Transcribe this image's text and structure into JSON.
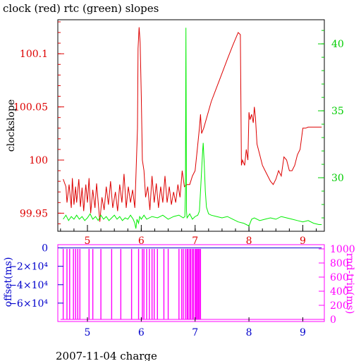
{
  "title": "clock (red) rtc (green) slopes",
  "footer": "2007-11-04 charge",
  "chart_data": [
    {
      "type": "line",
      "title": "clock (red) rtc (green) slopes",
      "ylabel": "clockslope",
      "y2label": "",
      "xlim": [
        4.45,
        9.4
      ],
      "ylim": [
        99.933,
        100.132
      ],
      "y2lim": [
        26.0,
        41.8
      ],
      "x_ticks": [
        5,
        6,
        7,
        8,
        9
      ],
      "y_ticks": [
        99.95,
        100,
        100.05,
        100.1
      ],
      "y_tick_labels": [
        "99.95",
        "100",
        "100.05",
        "100.1"
      ],
      "y2_ticks": [
        30,
        35,
        40
      ],
      "y2_tick_labels": [
        "30",
        "35",
        "40"
      ],
      "colors": {
        "clock": "#dd0000",
        "rtc": "#00ee00",
        "axis_left": "#dd0000",
        "axis_right": "#00cc00",
        "x_tick_labels": "#dd0000"
      },
      "series": [
        {
          "axis": "left",
          "color": "#dd0000",
          "points": [
            [
              4.55,
              99.982
            ],
            [
              4.6,
              99.975
            ],
            [
              4.62,
              99.96
            ],
            [
              4.66,
              99.977
            ],
            [
              4.7,
              99.955
            ],
            [
              4.72,
              99.983
            ],
            [
              4.75,
              99.958
            ],
            [
              4.78,
              99.975
            ],
            [
              4.8,
              99.96
            ],
            [
              4.84,
              99.982
            ],
            [
              4.87,
              99.956
            ],
            [
              4.9,
              99.974
            ],
            [
              4.93,
              99.952
            ],
            [
              4.97,
              99.977
            ],
            [
              5.0,
              99.96
            ],
            [
              5.03,
              99.983
            ],
            [
              5.06,
              99.95
            ],
            [
              5.1,
              99.972
            ],
            [
              5.14,
              99.955
            ],
            [
              5.17,
              99.978
            ],
            [
              5.2,
              99.96
            ],
            [
              5.23,
              99.942
            ],
            [
              5.27,
              99.965
            ],
            [
              5.31,
              99.953
            ],
            [
              5.35,
              99.975
            ],
            [
              5.39,
              99.958
            ],
            [
              5.43,
              99.98
            ],
            [
              5.47,
              99.955
            ],
            [
              5.52,
              99.97
            ],
            [
              5.56,
              99.952
            ],
            [
              5.6,
              99.977
            ],
            [
              5.64,
              99.96
            ],
            [
              5.68,
              99.987
            ],
            [
              5.72,
              99.955
            ],
            [
              5.76,
              99.975
            ],
            [
              5.8,
              99.96
            ],
            [
              5.84,
              99.972
            ],
            [
              5.88,
              99.955
            ],
            [
              5.9,
              99.983
            ],
            [
              5.93,
              100.03
            ],
            [
              5.94,
              100.105
            ],
            [
              5.96,
              100.125
            ],
            [
              5.98,
              100.11
            ],
            [
              6.0,
              100.06
            ],
            [
              6.02,
              100.0
            ],
            [
              6.05,
              99.99
            ],
            [
              6.08,
              99.965
            ],
            [
              6.12,
              99.975
            ],
            [
              6.16,
              99.953
            ],
            [
              6.2,
              99.985
            ],
            [
              6.24,
              99.96
            ],
            [
              6.28,
              99.978
            ],
            [
              6.32,
              99.955
            ],
            [
              6.36,
              99.975
            ],
            [
              6.4,
              99.96
            ],
            [
              6.44,
              99.985
            ],
            [
              6.48,
              99.96
            ],
            [
              6.52,
              99.975
            ],
            [
              6.56,
              99.958
            ],
            [
              6.6,
              99.97
            ],
            [
              6.64,
              99.96
            ],
            [
              6.68,
              99.977
            ],
            [
              6.72,
              99.965
            ],
            [
              6.76,
              99.99
            ],
            [
              6.8,
              99.975
            ],
            [
              6.85,
              99.977
            ],
            [
              6.9,
              99.977
            ],
            [
              6.95,
              99.985
            ],
            [
              7.0,
              99.99
            ],
            [
              7.04,
              100.01
            ],
            [
              7.08,
              100.03
            ],
            [
              7.1,
              100.043
            ],
            [
              7.12,
              100.025
            ],
            [
              7.16,
              100.03
            ],
            [
              7.3,
              100.055
            ],
            [
              7.45,
              100.075
            ],
            [
              7.6,
              100.095
            ],
            [
              7.7,
              100.108
            ],
            [
              7.8,
              100.12
            ],
            [
              7.84,
              100.118
            ],
            [
              7.86,
              99.995
            ],
            [
              7.88,
              100.0
            ],
            [
              7.92,
              99.995
            ],
            [
              7.95,
              100.01
            ],
            [
              7.98,
              100.0
            ],
            [
              8.0,
              100.045
            ],
            [
              8.02,
              100.038
            ],
            [
              8.05,
              100.043
            ],
            [
              8.08,
              100.035
            ],
            [
              8.1,
              100.05
            ],
            [
              8.12,
              100.04
            ],
            [
              8.15,
              100.015
            ],
            [
              8.2,
              100.005
            ],
            [
              8.25,
              99.995
            ],
            [
              8.3,
              99.99
            ],
            [
              8.35,
              99.985
            ],
            [
              8.4,
              99.98
            ],
            [
              8.45,
              99.977
            ],
            [
              8.5,
              99.982
            ],
            [
              8.55,
              99.99
            ],
            [
              8.6,
              99.985
            ],
            [
              8.65,
              100.003
            ],
            [
              8.7,
              100.0
            ],
            [
              8.75,
              99.99
            ],
            [
              8.8,
              99.99
            ],
            [
              8.85,
              99.995
            ],
            [
              8.9,
              100.005
            ],
            [
              8.95,
              100.01
            ],
            [
              9.0,
              100.03
            ],
            [
              9.05,
              100.03
            ],
            [
              9.1,
              100.031
            ],
            [
              9.2,
              100.031
            ],
            [
              9.35,
              100.031
            ]
          ]
        },
        {
          "axis": "right",
          "color": "#00ee00",
          "points": [
            [
              4.55,
              26.9
            ],
            [
              4.6,
              27.2
            ],
            [
              4.65,
              26.8
            ],
            [
              4.7,
              27.1
            ],
            [
              4.75,
              26.9
            ],
            [
              4.8,
              27.2
            ],
            [
              4.85,
              26.9
            ],
            [
              4.9,
              27.1
            ],
            [
              4.95,
              26.8
            ],
            [
              5.0,
              27.0
            ],
            [
              5.05,
              27.3
            ],
            [
              5.1,
              26.9
            ],
            [
              5.15,
              27.1
            ],
            [
              5.2,
              26.8
            ],
            [
              5.25,
              27.2
            ],
            [
              5.3,
              26.9
            ],
            [
              5.35,
              27.1
            ],
            [
              5.4,
              26.8
            ],
            [
              5.45,
              27.0
            ],
            [
              5.5,
              27.2
            ],
            [
              5.55,
              26.9
            ],
            [
              5.6,
              27.1
            ],
            [
              5.65,
              26.8
            ],
            [
              5.7,
              27.0
            ],
            [
              5.75,
              26.9
            ],
            [
              5.8,
              27.2
            ],
            [
              5.85,
              26.9
            ],
            [
              5.88,
              26.6
            ],
            [
              5.9,
              26.2
            ],
            [
              5.92,
              26.9
            ],
            [
              5.95,
              26.6
            ],
            [
              5.97,
              27.1
            ],
            [
              6.0,
              26.9
            ],
            [
              6.05,
              27.2
            ],
            [
              6.1,
              26.9
            ],
            [
              6.2,
              27.1
            ],
            [
              6.3,
              27.0
            ],
            [
              6.4,
              27.2
            ],
            [
              6.5,
              26.9
            ],
            [
              6.6,
              27.1
            ],
            [
              6.7,
              27.2
            ],
            [
              6.78,
              27.0
            ],
            [
              6.81,
              27.1
            ],
            [
              6.82,
              29.0
            ],
            [
              6.83,
              41.2
            ],
            [
              6.84,
              27.5
            ],
            [
              6.85,
              27.0
            ],
            [
              6.9,
              27.3
            ],
            [
              6.95,
              26.9
            ],
            [
              7.0,
              27.1
            ],
            [
              7.05,
              27.2
            ],
            [
              7.08,
              27.5
            ],
            [
              7.1,
              29.0
            ],
            [
              7.12,
              30.5
            ],
            [
              7.14,
              32.0
            ],
            [
              7.15,
              32.6
            ],
            [
              7.17,
              31.0
            ],
            [
              7.19,
              29.0
            ],
            [
              7.21,
              27.8
            ],
            [
              7.25,
              27.3
            ],
            [
              7.3,
              27.2
            ],
            [
              7.4,
              27.1
            ],
            [
              7.5,
              27.0
            ],
            [
              7.6,
              27.1
            ],
            [
              7.7,
              26.9
            ],
            [
              7.8,
              26.7
            ],
            [
              7.9,
              26.6
            ],
            [
              7.95,
              26.5
            ],
            [
              8.0,
              26.4
            ],
            [
              8.05,
              26.9
            ],
            [
              8.1,
              27.0
            ],
            [
              8.2,
              26.8
            ],
            [
              8.3,
              26.9
            ],
            [
              8.4,
              27.0
            ],
            [
              8.5,
              26.9
            ],
            [
              8.6,
              27.1
            ],
            [
              8.7,
              27.0
            ],
            [
              8.8,
              26.9
            ],
            [
              8.9,
              26.8
            ],
            [
              9.0,
              26.7
            ],
            [
              9.1,
              26.8
            ],
            [
              9.2,
              26.6
            ],
            [
              9.3,
              26.5
            ],
            [
              9.35,
              26.5
            ]
          ]
        }
      ]
    },
    {
      "type": "line",
      "ylabel": "offset(ms)",
      "y2label": "rnd-trip(ms)",
      "xlim": [
        4.45,
        9.4
      ],
      "ylim": [
        -80000,
        3500
      ],
      "y2lim": [
        -30,
        1060
      ],
      "x_ticks": [
        5,
        6,
        7,
        8,
        9
      ],
      "y_ticks": [
        0,
        -20000,
        -40000,
        -60000
      ],
      "y_tick_labels": [
        "0",
        "−2×10⁴",
        "−4×10⁴",
        "−6×10⁴"
      ],
      "y2_ticks": [
        0,
        200,
        400,
        600,
        800,
        1000
      ],
      "y2_tick_labels": [
        "0",
        "200",
        "400",
        "600",
        "800",
        "1000"
      ],
      "colors": {
        "offset": "#0000cc",
        "rnd_trip": "#ff00ff",
        "axis_left": "#0000cc",
        "axis_right": "#ff00ff",
        "x_tick_labels": "#0000cc"
      },
      "offset_level": 0,
      "rnd_trip_baseline": 0,
      "rnd_trip_spikes": [
        4.55,
        4.62,
        4.67,
        4.74,
        4.78,
        4.82,
        4.86,
        5.03,
        5.1,
        5.25,
        5.45,
        5.62,
        5.82,
        5.95,
        6.02,
        6.05,
        6.1,
        6.15,
        6.2,
        6.24,
        6.3,
        6.42,
        6.5,
        6.7,
        6.75,
        6.78,
        6.82,
        6.85,
        6.87,
        6.9,
        6.92,
        6.95,
        6.97,
        7.0,
        7.02,
        7.04,
        7.06,
        7.08,
        7.1
      ],
      "rnd_trip_spike_height": 1000
    }
  ]
}
